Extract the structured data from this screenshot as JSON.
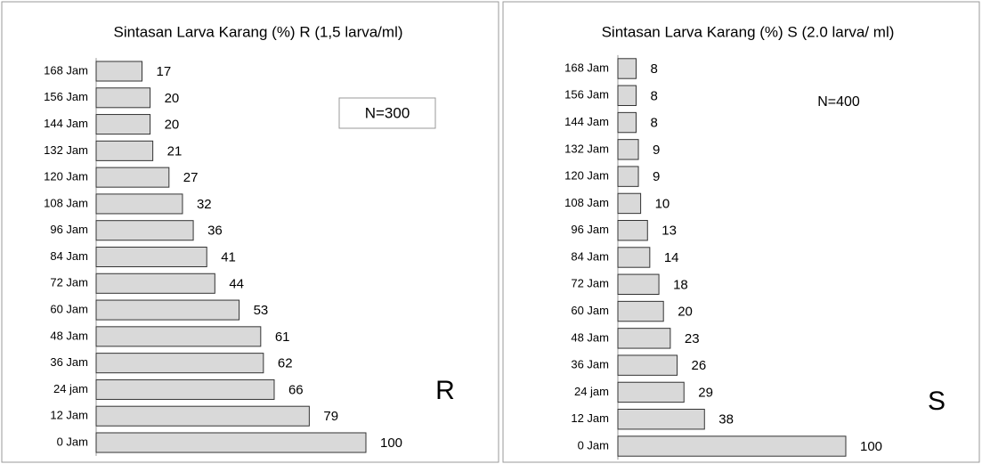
{
  "chart_data": [
    {
      "type": "bar",
      "orientation": "horizontal",
      "title": "Sintasan Larva Karang  (%) R (1,5 larva/ml)",
      "categories": [
        "168 Jam",
        "156 Jam",
        "144 Jam",
        "132 Jam",
        "120 Jam",
        "108 Jam",
        "96 Jam",
        "84 Jam",
        "72 Jam",
        "60 Jam",
        "48 Jam",
        "36 Jam",
        "24 jam",
        "12 Jam",
        "0 Jam"
      ],
      "values": [
        17,
        20,
        20,
        21,
        27,
        32,
        36,
        41,
        44,
        53,
        61,
        62,
        66,
        79,
        100
      ],
      "color": "#d9d9d9",
      "xlim": [
        0,
        100
      ],
      "annotations": [
        "N=300",
        "R"
      ]
    },
    {
      "type": "bar",
      "orientation": "horizontal",
      "title": "Sintasan Larva Karang  (%)  S  (2.0 larva/ ml)",
      "categories": [
        "168 Jam",
        "156 Jam",
        "144 Jam",
        "132 Jam",
        "120 Jam",
        "108 Jam",
        "96 Jam",
        "84 Jam",
        "72 Jam",
        "60 Jam",
        "48 Jam",
        "36 Jam",
        "24 jam",
        "12 Jam",
        "0 Jam"
      ],
      "values": [
        8,
        8,
        8,
        9,
        9,
        10,
        13,
        14,
        18,
        20,
        23,
        26,
        29,
        38,
        100
      ],
      "color": "#d9d9d9",
      "xlim": [
        0,
        100
      ],
      "annotations": [
        "N=400",
        "S"
      ]
    }
  ]
}
